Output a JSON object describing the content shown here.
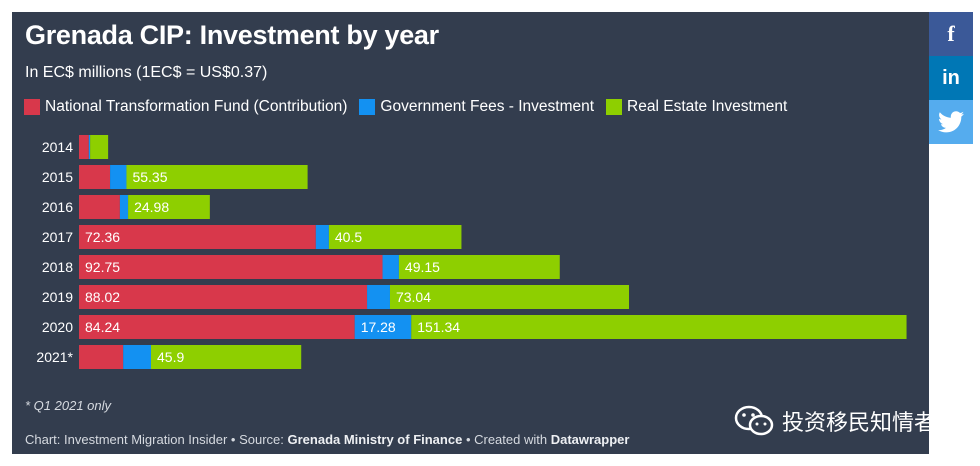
{
  "title": "Grenada CIP: Investment by year",
  "subtitle": "In EC$ millions (1EC$ = US$0.37)",
  "legend": [
    {
      "label": "National Transformation Fund (Contribution)",
      "color": "#d8384b"
    },
    {
      "label": "Government Fees - Investment",
      "color": "#1391f2"
    },
    {
      "label": "Real Estate Investment",
      "color": "#8ecf00"
    }
  ],
  "chart_data": {
    "type": "bar",
    "orientation": "horizontal",
    "stacked": true,
    "title": "Grenada CIP: Investment by year",
    "subtitle": "In EC$ millions (1EC$ = US$0.37)",
    "categories": [
      "2014",
      "2015",
      "2016",
      "2017",
      "2018",
      "2019",
      "2020",
      "2021*"
    ],
    "series": [
      {
        "name": "National Transformation Fund (Contribution)",
        "color": "#d8384b",
        "values": [
          3,
          9.5,
          12.5,
          72.36,
          92.75,
          88.02,
          84.24,
          13.5
        ],
        "labels": [
          "",
          "",
          "",
          "72.36",
          "92.75",
          "88.02",
          "84.24",
          ""
        ]
      },
      {
        "name": "Government Fees - Investment",
        "color": "#1391f2",
        "values": [
          0.4,
          5,
          2.5,
          4,
          5,
          7,
          17.28,
          8.5
        ],
        "labels": [
          "",
          "",
          "",
          "",
          "",
          "",
          "17.28",
          ""
        ]
      },
      {
        "name": "Real Estate Investment",
        "color": "#8ecf00",
        "values": [
          5.5,
          55.35,
          24.98,
          40.5,
          49.15,
          73.04,
          151.34,
          45.9
        ],
        "labels": [
          "",
          "55.35",
          "24.98",
          "40.5",
          "49.15",
          "73.04",
          "151.34",
          "45.9"
        ]
      }
    ],
    "xlim": [
      0,
      253
    ],
    "grid": false,
    "legend_position": "top-left"
  },
  "note": "* Q1 2021 only",
  "credit": {
    "prefix": "Chart: Investment Migration Insider • Source: ",
    "source": "Grenada Ministry of Finance",
    "middle": " • Created with ",
    "tool": "Datawrapper"
  },
  "watermark": "投资移民知情者",
  "share": {
    "facebook": "f",
    "linkedin": "in"
  },
  "colors": {
    "background": "#333d4e",
    "facebook": "#3b5998",
    "linkedin": "#0077b5",
    "twitter": "#55acee"
  }
}
